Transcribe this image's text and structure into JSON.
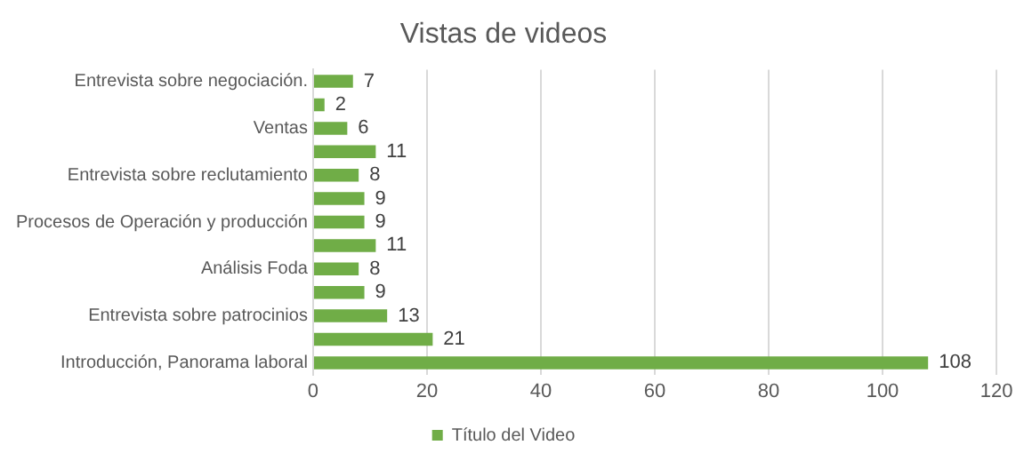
{
  "chart_data": {
    "type": "bar",
    "orientation": "horizontal",
    "title": "Vistas de videos",
    "categories": [
      "Entrevista sobre negociación.",
      null,
      "Ventas",
      null,
      "Entrevista sobre reclutamiento",
      null,
      "Procesos de Operación y producción",
      null,
      "Análisis Foda",
      null,
      "Entrevista sobre patrocinios",
      null,
      "Introducción, Panorama laboral"
    ],
    "series": [
      {
        "name": "Título del Video",
        "color": "#70ad47",
        "values": [
          7,
          2,
          6,
          11,
          8,
          9,
          9,
          11,
          8,
          9,
          13,
          21,
          108
        ]
      }
    ],
    "xlim": [
      0,
      120
    ],
    "xticks": [
      0,
      20,
      40,
      60,
      80,
      100,
      120
    ],
    "grid": "x",
    "legend": "bottom",
    "data_labels": true
  }
}
